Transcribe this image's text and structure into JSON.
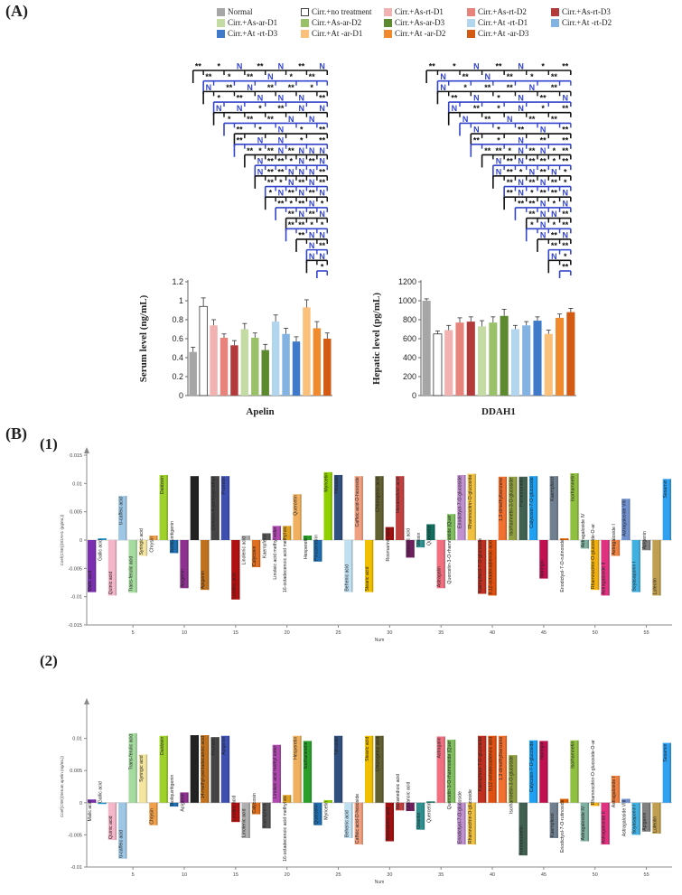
{
  "panel_labels": {
    "a": "(A)",
    "b": "(B)",
    "b1": "(1)",
    "b2": "(2)"
  },
  "legend": [
    {
      "label": "Normal",
      "color": "#a6a6a6"
    },
    {
      "label": "Cirr.+no treatment",
      "color": "#ffffff"
    },
    {
      "label": "Cirr.+As-rt-D1",
      "color": "#f2b2b2"
    },
    {
      "label": "Cirr.+As-rt-D2",
      "color": "#e8837c"
    },
    {
      "label": "Cirr.+As-rt-D3",
      "color": "#b23a3a"
    },
    {
      "label": "Cirr.+As-ar-D1",
      "color": "#c5dba4"
    },
    {
      "label": "Cirr.+As-ar-D2",
      "color": "#9ac06a"
    },
    {
      "label": "Cirr.+As-ar-D3",
      "color": "#5d8a2e"
    },
    {
      "label": "Cirr.+At -rt-D1",
      "color": "#b3d6ef"
    },
    {
      "label": "Cirr.+At -rt-D2",
      "color": "#82b3e3"
    },
    {
      "label": "Cirr.+At -rt-D3",
      "color": "#3f79c9"
    },
    {
      "label": "Cirr.+At -ar-D1",
      "color": "#fbc07a"
    },
    {
      "label": "Cirr.+At -ar-D2",
      "color": "#f08a2c"
    },
    {
      "label": "Cirr.+At -ar-D3",
      "color": "#d25a12"
    }
  ],
  "chart_data": [
    {
      "type": "bar",
      "title": "Apelin",
      "xlabel": "Apelin",
      "ylabel": "Serum level (ng/mL)",
      "ylim": [
        0,
        1.2
      ],
      "yticks": [
        "0",
        "0.2",
        "0.4",
        "0.6",
        "0.8",
        "1",
        "1.2"
      ],
      "values": [
        0.46,
        0.94,
        0.74,
        0.61,
        0.53,
        0.7,
        0.61,
        0.48,
        0.78,
        0.65,
        0.57,
        0.93,
        0.71,
        0.6
      ],
      "errors": [
        0.05,
        0.09,
        0.06,
        0.04,
        0.05,
        0.06,
        0.05,
        0.06,
        0.07,
        0.06,
        0.05,
        0.08,
        0.07,
        0.06
      ],
      "significance": [
        "**",
        "*",
        "N",
        "**",
        "N",
        "**",
        "N",
        "**",
        "*",
        "**",
        "N",
        "*",
        "**",
        "N",
        "**",
        "N",
        "**",
        "**",
        "*",
        "*",
        "**",
        "N",
        "N",
        "N",
        "**",
        "N",
        "N",
        "*",
        "**",
        "N",
        "N",
        "*",
        "**",
        "**",
        "N",
        "N",
        "**",
        "*",
        "N",
        "*",
        "**",
        "**",
        "N",
        "N",
        "*",
        "**",
        "**",
        "*",
        "**",
        "N",
        "**",
        "N",
        "N",
        "N",
        "N",
        "**",
        "**",
        "*",
        "N",
        "**",
        "N",
        "N",
        "**",
        "**",
        "N",
        "N",
        "N",
        "**",
        "**",
        "*",
        "N",
        "**",
        "N"
      ]
    },
    {
      "type": "bar",
      "title": "DDAH1",
      "xlabel": "DDAH1",
      "ylabel": "Hepatic level (pg/mL)",
      "ylim": [
        0,
        1200
      ],
      "yticks": [
        "0",
        "200",
        "400",
        "600",
        "800",
        "1000",
        "1200"
      ],
      "values": [
        1000,
        650,
        690,
        770,
        780,
        730,
        770,
        840,
        700,
        740,
        790,
        650,
        820,
        880
      ],
      "errors": [
        20,
        30,
        50,
        50,
        50,
        60,
        60,
        70,
        40,
        40,
        40,
        40,
        40,
        40
      ],
      "significance": [
        "**",
        "*",
        "N",
        "**",
        "N",
        "*",
        "**",
        "N",
        "**",
        "N",
        "**",
        "*",
        "**",
        "N",
        "*",
        "**",
        "**",
        "N",
        "**",
        "**",
        "N",
        "*",
        "N",
        "**",
        "N",
        "N",
        "**",
        "*",
        "N",
        "*",
        "**",
        "N",
        "**",
        "N",
        "**",
        "**",
        "N",
        "*",
        "**",
        "N",
        "**",
        "**",
        "*",
        "N",
        "**",
        "**",
        "**",
        "**",
        "*",
        "N",
        "**",
        "N",
        "*",
        "**",
        "N",
        "**",
        "N",
        "**",
        "**",
        "*",
        "**",
        "N"
      ]
    },
    {
      "type": "bar",
      "title": "(1)",
      "ylabel": "Coef(CSE)(DDAH1 (pg/mL))",
      "xlabel": "Num",
      "ylim": [
        -0.015,
        0.015
      ],
      "yticks": [
        "0.015",
        "0.01",
        "0.005",
        "0",
        "-0.005",
        "-0.01",
        "-0.015"
      ],
      "xticks": [
        "5",
        "10",
        "15",
        "20",
        "25",
        "30",
        "35",
        "40",
        "45",
        "50",
        "55"
      ],
      "values": [
        -0.0092,
        0.0003,
        -0.0098,
        0.0078,
        -0.0093,
        -0.0028,
        0.0008,
        0.0115,
        -0.0023,
        -0.0085,
        0.0113,
        -0.0088,
        0.0113,
        0.0113,
        -0.0105,
        0.0008,
        -0.0048,
        0.0012,
        0.0025,
        0.0025,
        0.0081,
        0.0008,
        -0.0038,
        0.012,
        0.0115,
        -0.0092,
        0.0113,
        -0.0092,
        0.0113,
        0.0023,
        0.0113,
        -0.0031,
        -0.0013,
        0.0028,
        -0.0085,
        0.0046,
        0.0115,
        0.0117,
        -0.0095,
        -0.0098,
        0.0112,
        0.0112,
        0.0112,
        0.0113,
        -0.0068,
        0.0113,
        0.0003,
        0.0118,
        -0.0015,
        -0.0088,
        -0.0098,
        -0.0028,
        0.0073,
        -0.0092,
        -0.0018,
        -0.0098,
        0.0108
      ],
      "labels": [
        "Malic acid",
        "Gallic acid",
        "Quinic acid",
        "tr-caffeic acid",
        "Trans-ferulic acid",
        "Syringic acid",
        "Chrysin",
        "Daidzein",
        "Isoliquiritigenin",
        "Apigenin",
        "Prunetin",
        "Apigenin",
        "Dichloro-4-pentoxymethyl",
        "Prunetin",
        "Linoleic acid",
        "Linolenic acid",
        "Calycosin",
        "Kaempferol",
        "Linoleic acid methyl ester",
        "16-octadecenoic acid methyl es",
        "Quercetin",
        "Hesperetin",
        "Pinocembrin",
        "Myricetin",
        "Tiliroside",
        "Behenic acid",
        "Caffeic acid-O-hexoside",
        "Stearic acid",
        "Chlorogenic acid",
        "Rosmarinic acid",
        "Hexanedioic acid",
        "Octanoic acid",
        "Vitexin",
        "Quercetin",
        "Astragalin",
        "Quercetin-3-O-rhamnoside (Quer",
        "Eriodictyol-7-O-glucoside",
        "Rhamnocitrin-O-glucoside",
        "Kaempferol-7-O-glucoside",
        "9,12-octadecadienoic acid",
        "1,2-dimethylbenzene",
        "Isorhamnetin-3-O-glucoside",
        "Formononetin",
        "Calycosin-7-O-glucoside",
        "Naringin",
        "Kaempferol",
        "Eriodictyol-7-O-rutinoside",
        "Isorhamnetin",
        "Astragaloside IV",
        "Rhamnocitrin-O-glucoside-O-ar",
        "Astragaloside II",
        "Astragaloside I",
        "Astragaloside VIII",
        "Soyasaponin I",
        "Apigenin",
        "Luteolin",
        "Sesamin"
      ]
    },
    {
      "type": "bar",
      "title": "(2)",
      "ylabel": "Coef(CSE)(Serum apelin (ng/mL))",
      "xlabel": "Num",
      "ylim": [
        -0.01,
        0.015
      ],
      "yticks": [
        "0.01",
        "0.005",
        "0",
        "-0.005",
        "-0.01"
      ],
      "xticks": [
        "5",
        "10",
        "15",
        "20",
        "25",
        "30",
        "35",
        "40",
        "45",
        "50",
        "55"
      ],
      "values": [
        0.0005,
        -0.0002,
        -0.0058,
        -0.0087,
        0.0108,
        0.0075,
        -0.0035,
        0.0104,
        -0.0006,
        0.0016,
        0.0105,
        0.0105,
        0.0102,
        0.0104,
        -0.003,
        -0.0055,
        -0.0018,
        -0.004,
        0.009,
        0.0012,
        0.0104,
        0.0096,
        -0.0035,
        0.0004,
        0.0104,
        -0.0055,
        -0.0065,
        0.0104,
        0.0104,
        -0.006,
        -0.0012,
        -0.0013,
        -0.0042,
        0.0002,
        0.0103,
        0.0098,
        -0.0065,
        -0.0065,
        0.0104,
        0.0104,
        0.0104,
        0.0074,
        -0.0082,
        0.0097,
        0.0096,
        -0.0055,
        0.0006,
        0.0097,
        -0.006,
        -0.0005,
        -0.0065,
        0.0042,
        0.0006,
        -0.005,
        -0.0045,
        -0.0048,
        0.0093
      ],
      "labels": [
        "Malic acid",
        "Gallic acid",
        "Quinic acid",
        "tr-caffeic acid",
        "Trans-ferulic acid",
        "Syringic acid",
        "Chrysin",
        "Daidzein",
        "Isoliquiritigenin",
        "Apigenin",
        "Dichloro-4-pentoxymethyl ester",
        "14-methyl-pentadecanoic acid",
        "Prunetin",
        "Apigenin",
        "Linoleic acid",
        "Linolenic acid",
        "Calycosin",
        "Kaempferol",
        "Linoleic acid methyl ester",
        "16-octadecenoic acid methyl es",
        "Hesperetin",
        "Isorhamnetin",
        "Quercetin",
        "Myricetin",
        "Tiliroside",
        "Behenic acid",
        "Caffeic acid-O-hexoside",
        "Stearic acid",
        "Chlorogenic acid",
        "Rosmarinic acid",
        "Hexanedioic acid",
        "Octanoic acid",
        "Orientin",
        "Quercetin",
        "Astragalin",
        "Quercetin-3-O-rhamnoside (Quer",
        "Eriodictyol-7-O-glucoside",
        "Rhamnocitrin-O-glucoside",
        "Kaempferol-7-O-glucoside",
        "9,12-octadecadienoic acid",
        "1,2-dimethylbenzene",
        "Isorhamnetin-3-O-glucoside",
        "Formononetin",
        "Calycosin-7-O-glucoside",
        "Naringin",
        "Kaempferol",
        "Eriodictyol-7-O-rutinoside",
        "Isorhamnetin",
        "Astragaloside IV",
        "Rhamnocitrin-O-glucoside-O-ar",
        "Astragaloside II",
        "Astragaloside I",
        "Astragaloside VIII",
        "Soyasaponin I",
        "Apigenin",
        "Luteolin",
        "Sesamin"
      ]
    }
  ],
  "colors": {
    "bracket_black": "#111111",
    "bracket_blue": "#3344cc",
    "axis": "#888888",
    "bar_palette_b": [
      "#7b2fb0",
      "#1e90c8",
      "#f4b6c9",
      "#9ec7e6",
      "#a6dba0",
      "#f4e6a0",
      "#f0a04a",
      "#9ed12a",
      "#1f6fb0",
      "#8e3090",
      "#222222",
      "#c0711e",
      "#444444",
      "#3d4fb0",
      "#b01010",
      "#b0b0b0",
      "#e07020",
      "#555555",
      "#b04ab0",
      "#e0a020",
      "#f0b060",
      "#2aa02a",
      "#1f6fb0",
      "#90d000",
      "#305080",
      "#c0dff0",
      "#f0a080",
      "#f0c000",
      "#606030",
      "#a01010",
      "#c04040",
      "#702060",
      "#309090",
      "#107060",
      "#f07080",
      "#80c060",
      "#c090d0",
      "#f0c040",
      "#c03020",
      "#e05010",
      "#f07030",
      "#90a040",
      "#406050",
      "#20a0f0",
      "#c01050",
      "#708090",
      "#e06000",
      "#90c040",
      "#80b0a0",
      "#f0b010",
      "#e03080",
      "#f08040",
      "#7090d0",
      "#40b0e0",
      "#808080",
      "#c0a050",
      "#30a0f0"
    ]
  }
}
